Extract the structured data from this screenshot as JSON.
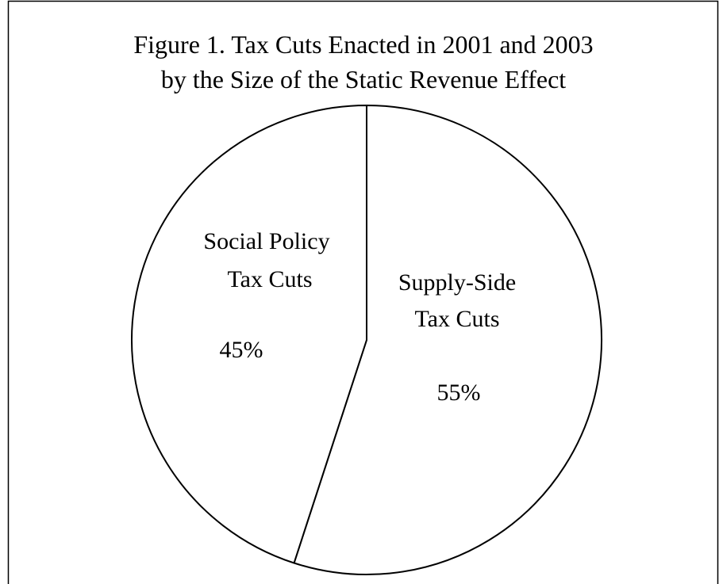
{
  "chart_data": {
    "type": "pie",
    "title": [
      "Figure 1. Tax Cuts Enacted in 2001 and 2003",
      "by the Size of the Static Revenue Effect"
    ],
    "slices": [
      {
        "label_lines": [
          "Supply-Side",
          "Tax Cuts"
        ],
        "value": 55,
        "value_label": "55%"
      },
      {
        "label_lines": [
          "Social Policy",
          "Tax Cuts"
        ],
        "value": 45,
        "value_label": "45%"
      }
    ],
    "start_angle_deg": 0,
    "direction": "clockwise",
    "legend": "none",
    "colors": {
      "fill": "#ffffff",
      "stroke": "#000000",
      "frame": "#000000"
    }
  }
}
